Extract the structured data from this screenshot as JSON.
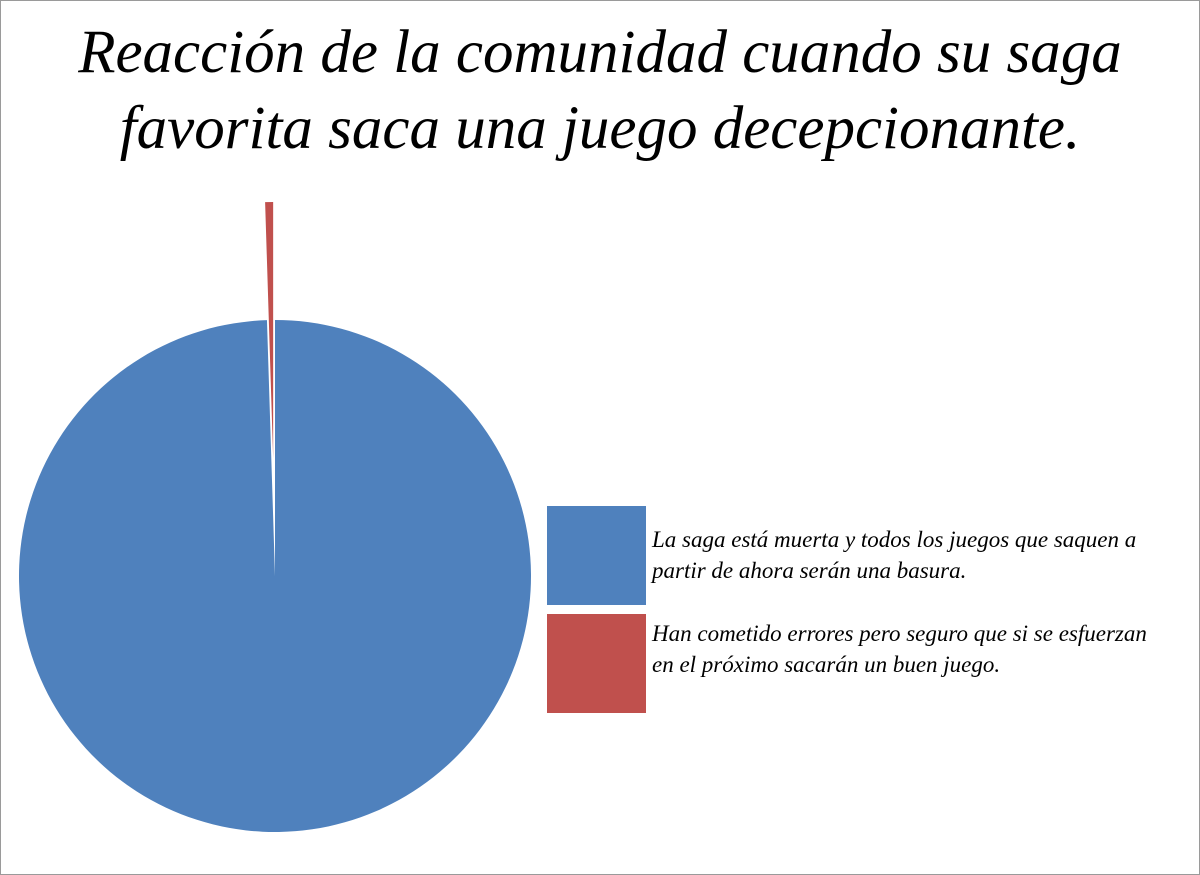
{
  "chart_data": {
    "type": "pie",
    "title": "Reacción de la comunidad cuando su saga favorita saca una juego decepcionante.",
    "categories": [
      "La saga está muerta y todos los juegos que saquen a partir de ahora serán una basura.",
      "Han cometido errores pero seguro que si se esfuerzan en el próximo sacarán un buen juego."
    ],
    "values": [
      99.5,
      0.5
    ],
    "colors": [
      "#4f81bd",
      "#c0504d"
    ]
  }
}
